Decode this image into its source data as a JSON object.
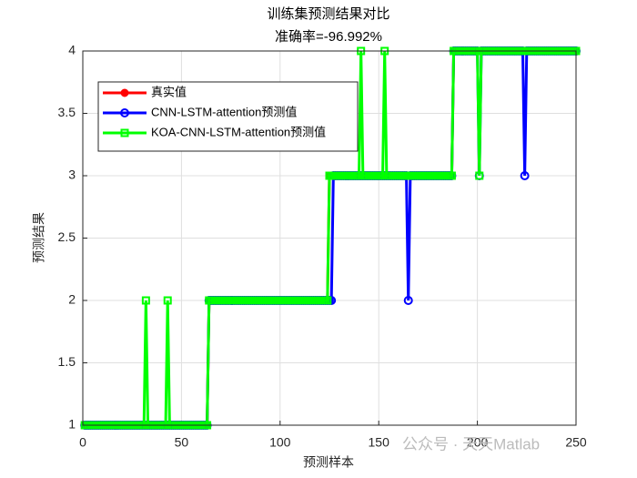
{
  "chart_data": {
    "type": "line",
    "title": "训练集预测结果对比",
    "subtitle": "准确率=-96.992%",
    "x_label": "预测样本",
    "y_label": "预测结果",
    "watermark": "公众号 · 天天Matlab",
    "xlim": [
      0,
      250
    ],
    "ylim": [
      1,
      4
    ],
    "xticks": [
      0,
      50,
      100,
      150,
      200,
      250
    ],
    "yticks": [
      1,
      1.5,
      2,
      2.5,
      3,
      3.5,
      4
    ],
    "grid": true,
    "legend": "upper left",
    "x": [
      1,
      2,
      3,
      4,
      5,
      6,
      7,
      8,
      9,
      10,
      11,
      12,
      13,
      14,
      15,
      16,
      17,
      18,
      19,
      20,
      21,
      22,
      23,
      24,
      25,
      26,
      27,
      28,
      29,
      30,
      31,
      32,
      33,
      34,
      35,
      36,
      37,
      38,
      39,
      40,
      41,
      42,
      43,
      44,
      45,
      46,
      47,
      48,
      49,
      50,
      51,
      52,
      53,
      54,
      55,
      56,
      57,
      58,
      59,
      60,
      61,
      62,
      63,
      64,
      65,
      66,
      67,
      68,
      69,
      70,
      71,
      72,
      73,
      74,
      75,
      76,
      77,
      78,
      79,
      80,
      81,
      82,
      83,
      84,
      85,
      86,
      87,
      88,
      89,
      90,
      91,
      92,
      93,
      94,
      95,
      96,
      97,
      98,
      99,
      100,
      101,
      102,
      103,
      104,
      105,
      106,
      107,
      108,
      109,
      110,
      111,
      112,
      113,
      114,
      115,
      116,
      117,
      118,
      119,
      120,
      121,
      122,
      123,
      124,
      125,
      126,
      127,
      128,
      129,
      130,
      131,
      132,
      133,
      134,
      135,
      136,
      137,
      138,
      139,
      140,
      141,
      142,
      143,
      144,
      145,
      146,
      147,
      148,
      149,
      150,
      151,
      152,
      153,
      154,
      155,
      156,
      157,
      158,
      159,
      160,
      161,
      162,
      163,
      164,
      165,
      166,
      167,
      168,
      169,
      170,
      171,
      172,
      173,
      174,
      175,
      176,
      177,
      178,
      179,
      180,
      181,
      182,
      183,
      184,
      185,
      186,
      187,
      188,
      189,
      190,
      191,
      192,
      193,
      194,
      195,
      196,
      197,
      198,
      199,
      200,
      201,
      202,
      203,
      204,
      205,
      206,
      207,
      208,
      209,
      210,
      211,
      212,
      213,
      214,
      215,
      216,
      217,
      218,
      219,
      220,
      221,
      222,
      223,
      224,
      225,
      226,
      227,
      228,
      229,
      230,
      231,
      232,
      233,
      234,
      235,
      236,
      237,
      238,
      239,
      240,
      241,
      242,
      243,
      244,
      245,
      246,
      247,
      248,
      249,
      250
    ],
    "series": [
      {
        "name": "真实值",
        "color": "#ff0000",
        "marker": "filled-circle",
        "values": [
          1,
          1,
          1,
          1,
          1,
          1,
          1,
          1,
          1,
          1,
          1,
          1,
          1,
          1,
          1,
          1,
          1,
          1,
          1,
          1,
          1,
          1,
          1,
          1,
          1,
          1,
          1,
          1,
          1,
          1,
          1,
          1,
          1,
          1,
          1,
          1,
          1,
          1,
          1,
          1,
          1,
          1,
          1,
          1,
          1,
          1,
          1,
          1,
          1,
          1,
          1,
          1,
          1,
          1,
          1,
          1,
          1,
          1,
          1,
          1,
          1,
          1,
          1,
          2,
          2,
          2,
          2,
          2,
          2,
          2,
          2,
          2,
          2,
          2,
          2,
          2,
          2,
          2,
          2,
          2,
          2,
          2,
          2,
          2,
          2,
          2,
          2,
          2,
          2,
          2,
          2,
          2,
          2,
          2,
          2,
          2,
          2,
          2,
          2,
          2,
          2,
          2,
          2,
          2,
          2,
          2,
          2,
          2,
          2,
          2,
          2,
          2,
          2,
          2,
          2,
          2,
          2,
          2,
          2,
          2,
          2,
          2,
          2,
          2,
          3,
          3,
          3,
          3,
          3,
          3,
          3,
          3,
          3,
          3,
          3,
          3,
          3,
          3,
          3,
          3,
          3,
          3,
          3,
          3,
          3,
          3,
          3,
          3,
          3,
          3,
          3,
          3,
          3,
          3,
          3,
          3,
          3,
          3,
          3,
          3,
          3,
          3,
          3,
          3,
          3,
          3,
          3,
          3,
          3,
          3,
          3,
          3,
          3,
          3,
          3,
          3,
          3,
          3,
          3,
          3,
          3,
          3,
          3,
          3,
          3,
          3,
          3,
          4,
          4,
          4,
          4,
          4,
          4,
          4,
          4,
          4,
          4,
          4,
          4,
          4,
          4,
          4,
          4,
          4,
          4,
          4,
          4,
          4,
          4,
          4,
          4,
          4,
          4,
          4,
          4,
          4,
          4,
          4,
          4,
          4,
          4,
          4,
          4,
          4,
          4,
          4,
          4,
          4,
          4,
          4,
          4,
          4,
          4,
          4,
          4,
          4,
          4,
          4,
          4,
          4,
          4,
          4,
          4,
          4,
          4,
          4,
          4,
          4,
          4,
          4
        ]
      },
      {
        "name": "CNN-LSTM-attention预测值",
        "color": "#0000ff",
        "marker": "open-circle",
        "values": [
          1,
          1,
          1,
          1,
          1,
          1,
          1,
          1,
          1,
          1,
          1,
          1,
          1,
          1,
          1,
          1,
          1,
          1,
          1,
          1,
          1,
          1,
          1,
          1,
          1,
          1,
          1,
          1,
          1,
          1,
          1,
          1,
          1,
          1,
          1,
          1,
          1,
          1,
          1,
          1,
          1,
          1,
          1,
          1,
          1,
          1,
          1,
          1,
          1,
          1,
          1,
          1,
          1,
          1,
          1,
          1,
          1,
          1,
          1,
          1,
          1,
          1,
          1,
          2,
          2,
          2,
          2,
          2,
          2,
          2,
          2,
          2,
          2,
          2,
          2,
          2,
          2,
          2,
          2,
          2,
          2,
          2,
          2,
          2,
          2,
          2,
          2,
          2,
          2,
          2,
          2,
          2,
          2,
          2,
          2,
          2,
          2,
          2,
          2,
          2,
          2,
          2,
          2,
          2,
          2,
          2,
          2,
          2,
          2,
          2,
          2,
          2,
          2,
          2,
          2,
          2,
          2,
          2,
          2,
          2,
          2,
          2,
          2,
          2,
          2,
          2,
          3,
          3,
          3,
          3,
          3,
          3,
          3,
          3,
          3,
          3,
          3,
          3,
          3,
          3,
          3,
          3,
          3,
          3,
          3,
          3,
          3,
          3,
          3,
          3,
          3,
          3,
          3,
          3,
          3,
          3,
          3,
          3,
          3,
          3,
          3,
          3,
          3,
          3,
          2,
          3,
          3,
          3,
          3,
          3,
          3,
          3,
          3,
          3,
          3,
          3,
          3,
          3,
          3,
          3,
          3,
          3,
          3,
          3,
          3,
          3,
          3,
          4,
          4,
          4,
          4,
          4,
          4,
          4,
          4,
          4,
          4,
          4,
          4,
          4,
          3,
          4,
          4,
          4,
          4,
          4,
          4,
          4,
          4,
          4,
          4,
          4,
          4,
          4,
          4,
          4,
          4,
          4,
          4,
          4,
          4,
          4,
          4,
          3,
          4,
          4,
          4,
          4,
          4,
          4,
          4,
          4,
          4,
          4,
          4,
          4,
          4,
          4,
          4,
          4,
          4,
          4,
          4,
          4,
          4,
          4,
          4,
          4,
          4,
          4
        ]
      },
      {
        "name": "KOA-CNN-LSTM-attention预测值",
        "color": "#00ff00",
        "marker": "open-square",
        "values": [
          1,
          1,
          1,
          1,
          1,
          1,
          1,
          1,
          1,
          1,
          1,
          1,
          1,
          1,
          1,
          1,
          1,
          1,
          1,
          1,
          1,
          1,
          1,
          1,
          1,
          1,
          1,
          1,
          1,
          1,
          1,
          2,
          1,
          1,
          1,
          1,
          1,
          1,
          1,
          1,
          1,
          1,
          2,
          1,
          1,
          1,
          1,
          1,
          1,
          1,
          1,
          1,
          1,
          1,
          1,
          1,
          1,
          1,
          1,
          1,
          1,
          1,
          1,
          2,
          2,
          2,
          2,
          2,
          2,
          2,
          2,
          2,
          2,
          2,
          2,
          2,
          2,
          2,
          2,
          2,
          2,
          2,
          2,
          2,
          2,
          2,
          2,
          2,
          2,
          2,
          2,
          2,
          2,
          2,
          2,
          2,
          2,
          2,
          2,
          2,
          2,
          2,
          2,
          2,
          2,
          2,
          2,
          2,
          2,
          2,
          2,
          2,
          2,
          2,
          2,
          2,
          2,
          2,
          2,
          2,
          2,
          2,
          2,
          2,
          3,
          3,
          3,
          3,
          3,
          3,
          3,
          3,
          3,
          3,
          3,
          3,
          3,
          3,
          3,
          3,
          4,
          3,
          3,
          3,
          3,
          3,
          3,
          3,
          3,
          3,
          3,
          3,
          4,
          3,
          3,
          3,
          3,
          3,
          3,
          3,
          3,
          3,
          3,
          3,
          3,
          3,
          3,
          3,
          3,
          3,
          3,
          3,
          3,
          3,
          3,
          3,
          3,
          3,
          3,
          3,
          3,
          3,
          3,
          3,
          3,
          3,
          3,
          4,
          4,
          4,
          4,
          4,
          4,
          4,
          4,
          4,
          4,
          4,
          4,
          4,
          3,
          4,
          4,
          4,
          4,
          4,
          4,
          4,
          4,
          4,
          4,
          4,
          4,
          4,
          4,
          4,
          4,
          4,
          4,
          4,
          4,
          4,
          4,
          4,
          4,
          4,
          4,
          4,
          4,
          4,
          4,
          4,
          4,
          4,
          4,
          4,
          4,
          4,
          4,
          4,
          4,
          4,
          4,
          4,
          4,
          4,
          4,
          4,
          4,
          4
        ]
      }
    ]
  }
}
